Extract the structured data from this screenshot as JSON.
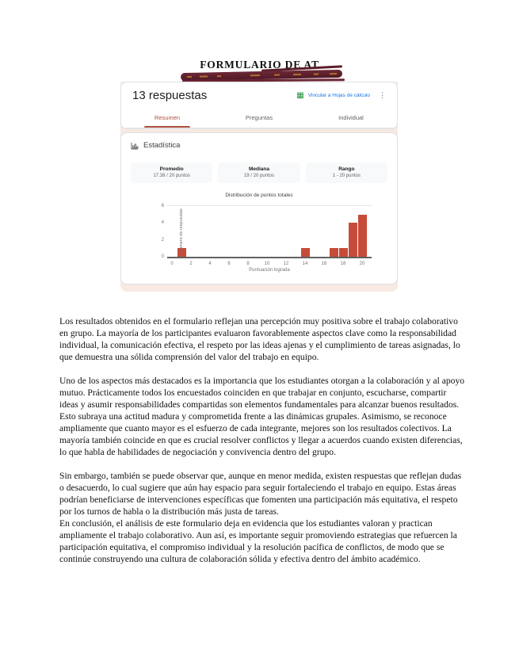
{
  "page": {
    "title": "FORMULARIO DE AT"
  },
  "form_results": {
    "responses_count": "13 respuestas",
    "link_label": "Vincular a Hojas de cálculo",
    "more_menu": "⋮",
    "tabs": [
      {
        "label": "Resumen",
        "active": true
      },
      {
        "label": "Preguntas",
        "active": false
      },
      {
        "label": "Individual",
        "active": false
      }
    ],
    "stats_section": {
      "heading": "Estadística",
      "stats": [
        {
          "label": "Promedio",
          "value": "17.38 / 20 puntos"
        },
        {
          "label": "Mediana",
          "value": "19 / 20 puntos"
        },
        {
          "label": "Rango",
          "value": "1 - 20 puntos"
        }
      ]
    }
  },
  "chart_data": {
    "type": "bar",
    "title": "Distribución de puntos totales",
    "xlabel": "Puntuación lograda",
    "ylabel": "Número de respuestas",
    "x": [
      1,
      14,
      17,
      18,
      19,
      20
    ],
    "values": [
      1,
      1,
      1,
      1,
      4,
      5
    ],
    "bar_width": 1,
    "xlim": [
      -0.5,
      21
    ],
    "ylim": [
      0,
      6
    ],
    "x_ticks": [
      0,
      2,
      4,
      6,
      8,
      10,
      12,
      14,
      16,
      18,
      20
    ],
    "y_ticks": [
      0,
      2,
      4,
      6
    ],
    "bar_color": "#c64b38",
    "grid": true,
    "legend_position": "none"
  },
  "colors": {
    "forms_accent_red": "#ad4e3d",
    "bar_color": "#c64b38",
    "link_blue": "#1a73e8",
    "sheets_green": "#1e8e3e",
    "forms_page_pink": "#f8e9e3",
    "scribble_maroon": "#5a1e2a"
  },
  "document": {
    "paragraphs": [
      "Los resultados obtenidos en el formulario reflejan una percepción muy positiva sobre el trabajo colaborativo en grupo. La mayoría de los participantes evaluaron favorablemente aspectos clave como la responsabilidad individual, la comunicación efectiva, el respeto por las ideas ajenas y el cumplimiento de tareas asignadas, lo que demuestra una sólida comprensión del valor del trabajo en equipo.",
      "Uno de los aspectos más destacados es la importancia que los estudiantes otorgan a la colaboración y al apoyo mutuo. Prácticamente todos los encuestados coinciden en que trabajar en conjunto, escucharse, compartir ideas y asumir responsabilidades compartidas son elementos fundamentales para alcanzar buenos resultados. Esto subraya una actitud madura y comprometida frente a las dinámicas grupales. Asimismo, se reconoce ampliamente que cuanto mayor es el esfuerzo de cada integrante, mejores son los resultados colectivos. La mayoría también coincide en que es crucial resolver conflictos y llegar a acuerdos cuando existen diferencias, lo que habla de habilidades de negociación y convivencia dentro del grupo.",
      "Sin embargo, también se puede observar que, aunque en menor medida, existen respuestas que reflejan dudas o desacuerdo, lo cual sugiere que aún hay espacio para seguir fortaleciendo el trabajo en equipo. Estas áreas podrían beneficiarse de intervenciones específicas que fomenten una participación más equitativa, el respeto por los turnos de habla o la distribución más justa de tareas.",
      "En conclusión, el análisis de este formulario deja en evidencia que los estudiantes valoran y practican ampliamente el trabajo colaborativo. Aun así, es importante seguir promoviendo estrategias que refuercen la participación equitativa, el compromiso individual y la resolución pacífica de conflictos, de modo que se continúe construyendo una cultura de colaboración sólida y efectiva dentro del ámbito académico."
    ]
  }
}
